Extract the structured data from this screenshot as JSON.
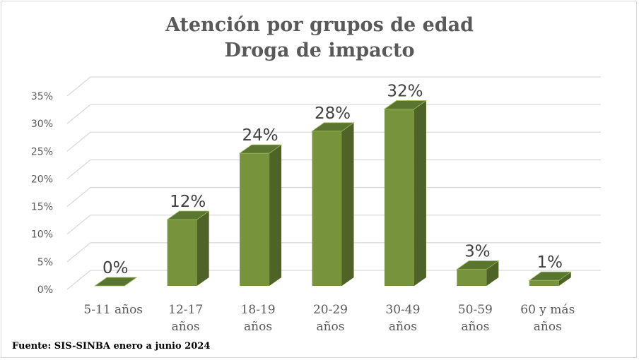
{
  "chart_data": {
    "type": "bar",
    "style": "3d-column",
    "title": "Atención por grupos de edad",
    "subtitle": "Droga de impacto",
    "xlabel": "",
    "ylabel": "",
    "categories": [
      "5-11 años",
      "12-17 años",
      "18-19 años",
      "20-29 años",
      "30-49 años",
      "50-59 años",
      "60 y más años"
    ],
    "category_lines": [
      [
        "5-11 años"
      ],
      [
        "12-17",
        "años"
      ],
      [
        "18-19",
        "años"
      ],
      [
        "20-29",
        "años"
      ],
      [
        "30-49",
        "años"
      ],
      [
        "50-59",
        "años"
      ],
      [
        "60 y más",
        "años"
      ]
    ],
    "values": [
      0,
      12,
      24,
      28,
      32,
      3,
      1
    ],
    "data_labels": [
      "0%",
      "12%",
      "24%",
      "28%",
      "32%",
      "3%",
      "1%"
    ],
    "yticks": [
      "0%",
      "5%",
      "10%",
      "15%",
      "20%",
      "25%",
      "30%",
      "35%"
    ],
    "ylim": [
      0,
      35
    ],
    "grid": true,
    "legend": "none",
    "colors": {
      "front": "#77933c",
      "top": "#5a7530",
      "side": "#4f6228",
      "edge": "#9bbb59",
      "grid": "#d9d9d9"
    }
  },
  "source": "Fuente: SIS-SINBA enero a junio 2024"
}
